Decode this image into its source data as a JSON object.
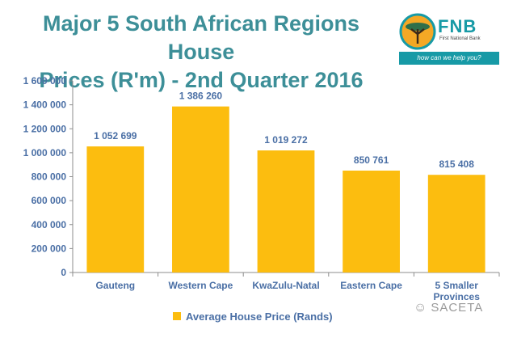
{
  "title_line1": "Major 5 South African Regions House",
  "title_line2": "Prices (R'm) - 2nd Quarter 2016",
  "logo": {
    "brand": "FNB",
    "sub": "First National Bank",
    "tagline": "how can we help you?",
    "icon": "acacia-tree-icon",
    "colors": {
      "primary": "#179aa6",
      "accent": "#f4a825"
    }
  },
  "watermark": {
    "text": "SACETA",
    "icon": "wechat-icon"
  },
  "chart_data": {
    "type": "bar",
    "categories": [
      "Gauteng",
      "Western Cape",
      "KwaZulu-Natal",
      "Eastern Cape",
      "5 Smaller Provinces"
    ],
    "series": [
      {
        "name": "Average House Price  (Rands)",
        "values": [
          1052699,
          1386260,
          1019272,
          850761,
          815408
        ],
        "labels": [
          "1 052 699",
          "1 386 260",
          "1 019 272",
          "850 761",
          "815 408"
        ],
        "color": "#fcbd0f"
      }
    ],
    "ylim": [
      0,
      1600000
    ],
    "yticks": [
      0,
      200000,
      400000,
      600000,
      800000,
      1000000,
      1200000,
      1400000,
      1600000
    ],
    "ytick_labels": [
      "0",
      "200 000",
      "400 000",
      "600 000",
      "800 000",
      "1 000 000",
      "1 200 000",
      "1 400 000",
      "1 600 000"
    ],
    "grid": false,
    "legend": "bottom-center",
    "colors": {
      "text": "#4a6fa5"
    }
  }
}
